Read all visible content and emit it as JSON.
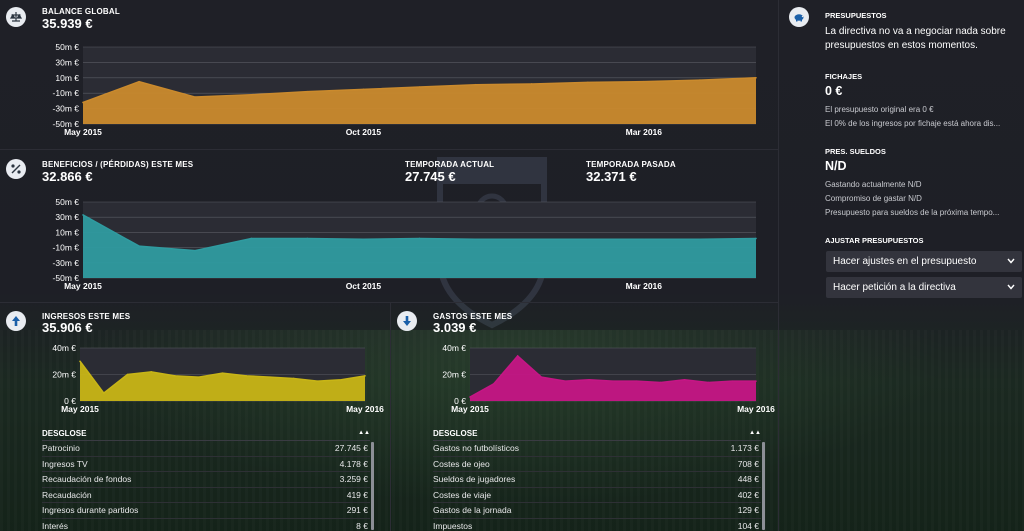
{
  "balance": {
    "label": "BALANCE GLOBAL",
    "value": "35.939 €",
    "icon": "scales-icon",
    "chart_data": {
      "type": "area",
      "color": "#ca8a2d",
      "x": [
        "May 2015",
        "Jun 2015",
        "Jul 2015",
        "Ago 2015",
        "Sep 2015",
        "Oct 2015",
        "Nov 2015",
        "Dic 2015",
        "Ene 2016",
        "Feb 2016",
        "Mar 2016",
        "Abr 2016",
        "May 2016"
      ],
      "values": [
        -22,
        5,
        -15,
        -12,
        -8,
        -5,
        -2,
        1,
        2,
        4,
        5,
        7,
        10
      ],
      "yticks": [
        "50m €",
        "30m €",
        "10m €",
        "-10m €",
        "-30m €",
        "-50m €"
      ],
      "ylim": [
        -50,
        50
      ],
      "xticks": [
        "May 2015",
        "Oct 2015",
        "Mar 2016"
      ],
      "xtick_index": [
        0,
        5,
        10
      ]
    }
  },
  "beneficios": {
    "label": "BENEFICIOS / (PÉRDIDAS) ESTE MES",
    "value": "32.866 €",
    "icon": "percent-icon",
    "temporada_actual_label": "TEMPORADA ACTUAL",
    "temporada_actual_value": "27.745 €",
    "temporada_pasada_label": "TEMPORADA PASADA",
    "temporada_pasada_value": "32.371 €",
    "chart_data": {
      "type": "area",
      "color": "#2f9ba0",
      "x": [
        "May 2015",
        "Jun 2015",
        "Jul 2015",
        "Ago 2015",
        "Sep 2015",
        "Oct 2015",
        "Nov 2015",
        "Dic 2015",
        "Ene 2016",
        "Feb 2016",
        "Mar 2016",
        "Abr 2016",
        "May 2016"
      ],
      "values": [
        33,
        -8,
        -14,
        2,
        2,
        1,
        2,
        1,
        1,
        1,
        1,
        1,
        2
      ],
      "yticks": [
        "50m €",
        "30m €",
        "10m €",
        "-10m €",
        "-30m €",
        "-50m €"
      ],
      "ylim": [
        -50,
        50
      ],
      "xticks": [
        "May 2015",
        "Oct 2015",
        "Mar 2016"
      ],
      "xtick_index": [
        0,
        5,
        10
      ]
    }
  },
  "ingresos": {
    "label": "INGRESOS ESTE MES",
    "value": "35.906 €",
    "icon": "arrow-up-icon",
    "chart_data": {
      "type": "area",
      "color": "#c8b516",
      "x": [
        "May 2015",
        "Jun 2015",
        "Jul 2015",
        "Ago 2015",
        "Sep 2015",
        "Oct 2015",
        "Nov 2015",
        "Dic 2015",
        "Ene 2016",
        "Feb 2016",
        "Mar 2016",
        "Abr 2016",
        "May 2016"
      ],
      "values": [
        30,
        6,
        20,
        22,
        19,
        18,
        21,
        19,
        18,
        17,
        15,
        16,
        19
      ],
      "yticks": [
        "40m €",
        "20m €",
        "0 €"
      ],
      "ylim": [
        0,
        40
      ],
      "xticks": [
        "May 2015",
        "May 2016"
      ],
      "xtick_index": [
        0,
        12
      ]
    },
    "breakdown_header": "DESGLOSE",
    "rows": [
      {
        "name": "Patrocinio",
        "value": "27.745 €"
      },
      {
        "name": "Ingresos TV",
        "value": "4.178 €"
      },
      {
        "name": "Recaudación de fondos",
        "value": "3.259 €"
      },
      {
        "name": "Recaudación",
        "value": "419 €"
      },
      {
        "name": "Ingresos durante partidos",
        "value": "291 €"
      },
      {
        "name": "Interés",
        "value": "8 €"
      }
    ]
  },
  "gastos": {
    "label": "GASTOS ESTE MES",
    "value": "3.039 €",
    "icon": "arrow-down-icon",
    "chart_data": {
      "type": "area",
      "color": "#c51685",
      "x": [
        "May 2015",
        "Jun 2015",
        "Jul 2015",
        "Ago 2015",
        "Sep 2015",
        "Oct 2015",
        "Nov 2015",
        "Dic 2015",
        "Ene 2016",
        "Feb 2016",
        "Mar 2016",
        "Abr 2016",
        "May 2016"
      ],
      "values": [
        3,
        13,
        34,
        18,
        15,
        16,
        15,
        15,
        14,
        16,
        14,
        15,
        15
      ],
      "yticks": [
        "40m €",
        "20m €",
        "0 €"
      ],
      "ylim": [
        0,
        40
      ],
      "xticks": [
        "May 2015",
        "May 2016"
      ],
      "xtick_index": [
        0,
        12
      ]
    },
    "breakdown_header": "DESGLOSE",
    "rows": [
      {
        "name": "Gastos no futbolísticos",
        "value": "1.173 €"
      },
      {
        "name": "Costes de ojeo",
        "value": "708 €"
      },
      {
        "name": "Sueldos de jugadores",
        "value": "448 €"
      },
      {
        "name": "Costes de viaje",
        "value": "402 €"
      },
      {
        "name": "Gastos de la jornada",
        "value": "129 €"
      },
      {
        "name": "Impuestos",
        "value": "104 €"
      }
    ]
  },
  "right_panel": {
    "icon": "piggy-bank-icon",
    "presupuestos_title": "PRESUPUESTOS",
    "presupuestos_text_1": "La directiva no va a negociar nada sobre",
    "presupuestos_text_2": "presupuestos en estos momentos.",
    "fichajes_title": "FICHAJES",
    "fichajes_value": "0 €",
    "fichajes_line1": "El presupuesto original era 0 €",
    "fichajes_line2": "El 0% de los ingresos por fichaje está ahora dis...",
    "sueldos_title": "PRES. SUELDOS",
    "sueldos_value": "N/D",
    "sueldos_line1": "Gastando actualmente N/D",
    "sueldos_line2": "Compromiso de gastar N/D",
    "sueldos_line3": "Presupuesto para sueldos de la próxima tempo...",
    "ajustar_title": "AJUSTAR PRESUPUESTOS",
    "dropdown1": "Hacer ajustes en el presupuesto",
    "dropdown2": "Hacer petición a la directiva"
  }
}
